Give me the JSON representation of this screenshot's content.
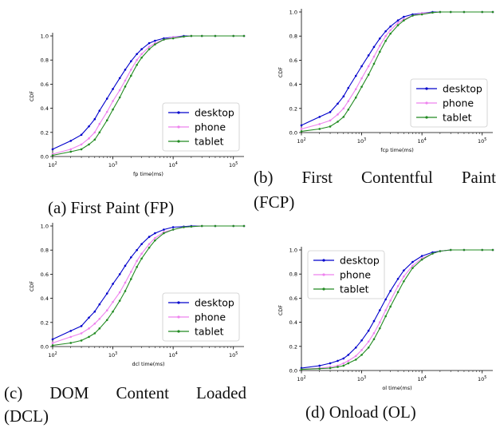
{
  "series_meta": [
    {
      "name": "desktop",
      "color": "#0000cc"
    },
    {
      "name": "phone",
      "color": "#ee82ee"
    },
    {
      "name": "tablet",
      "color": "#228b22"
    }
  ],
  "captions": [
    {
      "line1": "(a) First Paint (FP)",
      "line2": ""
    },
    {
      "line1": "(b) First Contentful Paint",
      "line2": "(FCP)"
    },
    {
      "line1": "(c) DOM Content Loaded",
      "line2": "(DCL)"
    },
    {
      "line1": "(d) Onload (OL)",
      "line2": ""
    }
  ],
  "chart_data": [
    {
      "type": "line",
      "xlabel": "fp time(ms)",
      "ylabel": "CDF",
      "xscale": "log",
      "xlim": [
        100,
        150000
      ],
      "ylim": [
        0,
        1.0
      ],
      "xticks": [
        "10^2",
        "10^3",
        "10^4",
        "10^5"
      ],
      "yticks": [
        "0.0",
        "0.2",
        "0.4",
        "0.6",
        "0.8",
        "1.0"
      ],
      "legend": "right",
      "series": [
        {
          "name": "desktop",
          "x": [
            100,
            200,
            300,
            400,
            500,
            600,
            800,
            1000,
            1300,
            1600,
            2000,
            2500,
            3000,
            4000,
            5000,
            7000,
            10000,
            15000,
            20000,
            30000,
            50000,
            100000,
            150000
          ],
          "y": [
            0.06,
            0.13,
            0.18,
            0.25,
            0.31,
            0.38,
            0.48,
            0.56,
            0.65,
            0.72,
            0.79,
            0.85,
            0.89,
            0.94,
            0.96,
            0.98,
            0.99,
            1.0,
            1.0,
            1.0,
            1.0,
            1.0,
            1.0
          ]
        },
        {
          "name": "phone",
          "x": [
            100,
            200,
            300,
            400,
            500,
            600,
            800,
            1000,
            1300,
            1600,
            2000,
            2500,
            3000,
            4000,
            5000,
            7000,
            10000,
            15000,
            20000,
            30000,
            50000,
            100000,
            150000
          ],
          "y": [
            0.02,
            0.06,
            0.1,
            0.15,
            0.2,
            0.27,
            0.37,
            0.46,
            0.55,
            0.63,
            0.72,
            0.8,
            0.85,
            0.91,
            0.94,
            0.97,
            0.99,
            0.995,
            1.0,
            1.0,
            1.0,
            1.0,
            1.0
          ]
        },
        {
          "name": "tablet",
          "x": [
            100,
            200,
            300,
            400,
            500,
            600,
            800,
            1000,
            1300,
            1600,
            2000,
            2500,
            3000,
            4000,
            5000,
            7000,
            10000,
            15000,
            20000,
            30000,
            50000,
            100000,
            150000
          ],
          "y": [
            0.01,
            0.04,
            0.06,
            0.1,
            0.14,
            0.2,
            0.3,
            0.39,
            0.49,
            0.58,
            0.67,
            0.76,
            0.82,
            0.89,
            0.93,
            0.97,
            0.98,
            0.995,
            1.0,
            1.0,
            1.0,
            1.0,
            1.0
          ]
        }
      ]
    },
    {
      "type": "line",
      "xlabel": "fcp time(ms)",
      "ylabel": "CDF",
      "xscale": "log",
      "xlim": [
        100,
        150000
      ],
      "ylim": [
        0,
        1.0
      ],
      "xticks": [
        "10^2",
        "10^3",
        "10^4",
        "10^5"
      ],
      "yticks": [
        "0.0",
        "0.2",
        "0.4",
        "0.6",
        "0.8",
        "1.0"
      ],
      "legend": "right",
      "series": [
        {
          "name": "desktop",
          "x": [
            100,
            200,
            300,
            400,
            500,
            600,
            800,
            1000,
            1300,
            1600,
            2000,
            2500,
            3000,
            4000,
            5000,
            7000,
            10000,
            15000,
            20000,
            30000,
            50000,
            100000,
            150000
          ],
          "y": [
            0.06,
            0.13,
            0.17,
            0.24,
            0.3,
            0.37,
            0.47,
            0.55,
            0.64,
            0.71,
            0.78,
            0.84,
            0.88,
            0.93,
            0.96,
            0.98,
            0.99,
            1.0,
            1.0,
            1.0,
            1.0,
            1.0,
            1.0
          ]
        },
        {
          "name": "phone",
          "x": [
            100,
            200,
            300,
            400,
            500,
            600,
            800,
            1000,
            1300,
            1600,
            2000,
            2500,
            3000,
            4000,
            5000,
            7000,
            10000,
            15000,
            20000,
            30000,
            50000,
            100000,
            150000
          ],
          "y": [
            0.03,
            0.07,
            0.1,
            0.15,
            0.2,
            0.26,
            0.36,
            0.45,
            0.55,
            0.63,
            0.72,
            0.8,
            0.85,
            0.91,
            0.94,
            0.97,
            0.99,
            0.995,
            1.0,
            1.0,
            1.0,
            1.0,
            1.0
          ]
        },
        {
          "name": "tablet",
          "x": [
            100,
            200,
            300,
            400,
            500,
            600,
            800,
            1000,
            1300,
            1600,
            2000,
            2500,
            3000,
            4000,
            5000,
            7000,
            10000,
            15000,
            20000,
            30000,
            50000,
            100000,
            150000
          ],
          "y": [
            0.01,
            0.03,
            0.05,
            0.09,
            0.13,
            0.19,
            0.29,
            0.38,
            0.48,
            0.57,
            0.67,
            0.76,
            0.82,
            0.89,
            0.93,
            0.97,
            0.98,
            0.995,
            1.0,
            1.0,
            1.0,
            1.0,
            1.0
          ]
        }
      ]
    },
    {
      "type": "line",
      "xlabel": "dcl time(ms)",
      "ylabel": "CDF",
      "xscale": "log",
      "xlim": [
        100,
        150000
      ],
      "ylim": [
        0,
        1.0
      ],
      "xticks": [
        "10^2",
        "10^3",
        "10^4",
        "10^5"
      ],
      "yticks": [
        "0.0",
        "0.2",
        "0.4",
        "0.6",
        "0.8",
        "1.0"
      ],
      "legend": "right",
      "series": [
        {
          "name": "desktop",
          "x": [
            100,
            200,
            300,
            400,
            500,
            600,
            800,
            1000,
            1300,
            1600,
            2000,
            2500,
            3000,
            4000,
            5000,
            7000,
            10000,
            15000,
            20000,
            30000,
            50000,
            100000,
            150000
          ],
          "y": [
            0.06,
            0.13,
            0.17,
            0.24,
            0.29,
            0.35,
            0.44,
            0.52,
            0.6,
            0.67,
            0.74,
            0.8,
            0.85,
            0.91,
            0.94,
            0.97,
            0.99,
            0.995,
            1.0,
            1.0,
            1.0,
            1.0,
            1.0
          ]
        },
        {
          "name": "phone",
          "x": [
            100,
            200,
            300,
            400,
            500,
            600,
            800,
            1000,
            1300,
            1600,
            2000,
            2500,
            3000,
            4000,
            5000,
            7000,
            10000,
            15000,
            20000,
            30000,
            50000,
            100000,
            150000
          ],
          "y": [
            0.03,
            0.08,
            0.11,
            0.15,
            0.19,
            0.23,
            0.3,
            0.37,
            0.45,
            0.53,
            0.62,
            0.71,
            0.77,
            0.85,
            0.9,
            0.95,
            0.97,
            0.99,
            0.995,
            1.0,
            1.0,
            1.0,
            1.0
          ]
        },
        {
          "name": "tablet",
          "x": [
            100,
            200,
            300,
            400,
            500,
            600,
            800,
            1000,
            1300,
            1600,
            2000,
            2500,
            3000,
            4000,
            5000,
            7000,
            10000,
            15000,
            20000,
            30000,
            50000,
            100000,
            150000
          ],
          "y": [
            0.01,
            0.03,
            0.05,
            0.08,
            0.11,
            0.15,
            0.22,
            0.29,
            0.38,
            0.46,
            0.56,
            0.66,
            0.73,
            0.82,
            0.88,
            0.94,
            0.97,
            0.99,
            0.995,
            1.0,
            1.0,
            1.0,
            1.0
          ]
        }
      ]
    },
    {
      "type": "line",
      "xlabel": "ol time(ms)",
      "ylabel": "CDF",
      "xscale": "log",
      "xlim": [
        100,
        150000
      ],
      "ylim": [
        0,
        1.0
      ],
      "xticks": [
        "10^2",
        "10^3",
        "10^4",
        "10^5"
      ],
      "yticks": [
        "0.0",
        "0.2",
        "0.4",
        "0.6",
        "0.8",
        "1.0"
      ],
      "legend": "top-left",
      "series": [
        {
          "name": "desktop",
          "x": [
            100,
            200,
            300,
            400,
            500,
            600,
            800,
            1000,
            1300,
            1600,
            2000,
            2500,
            3000,
            4000,
            5000,
            7000,
            10000,
            15000,
            20000,
            30000,
            50000,
            100000,
            150000
          ],
          "y": [
            0.02,
            0.04,
            0.06,
            0.08,
            0.1,
            0.13,
            0.19,
            0.25,
            0.33,
            0.41,
            0.5,
            0.59,
            0.66,
            0.76,
            0.83,
            0.9,
            0.95,
            0.98,
            0.99,
            1.0,
            1.0,
            1.0,
            1.0
          ]
        },
        {
          "name": "phone",
          "x": [
            100,
            200,
            300,
            400,
            500,
            600,
            800,
            1000,
            1300,
            1600,
            2000,
            2500,
            3000,
            4000,
            5000,
            7000,
            10000,
            15000,
            20000,
            30000,
            50000,
            100000,
            150000
          ],
          "y": [
            0.01,
            0.02,
            0.03,
            0.04,
            0.06,
            0.08,
            0.12,
            0.17,
            0.24,
            0.31,
            0.4,
            0.5,
            0.58,
            0.7,
            0.78,
            0.87,
            0.93,
            0.97,
            0.99,
            1.0,
            1.0,
            1.0,
            1.0
          ]
        },
        {
          "name": "tablet",
          "x": [
            100,
            200,
            300,
            400,
            500,
            600,
            800,
            1000,
            1300,
            1600,
            2000,
            2500,
            3000,
            4000,
            5000,
            7000,
            10000,
            15000,
            20000,
            30000,
            50000,
            100000,
            150000
          ],
          "y": [
            0.01,
            0.015,
            0.02,
            0.03,
            0.04,
            0.06,
            0.09,
            0.13,
            0.19,
            0.26,
            0.35,
            0.45,
            0.53,
            0.65,
            0.74,
            0.85,
            0.92,
            0.97,
            0.99,
            1.0,
            1.0,
            1.0,
            1.0
          ]
        }
      ]
    }
  ]
}
